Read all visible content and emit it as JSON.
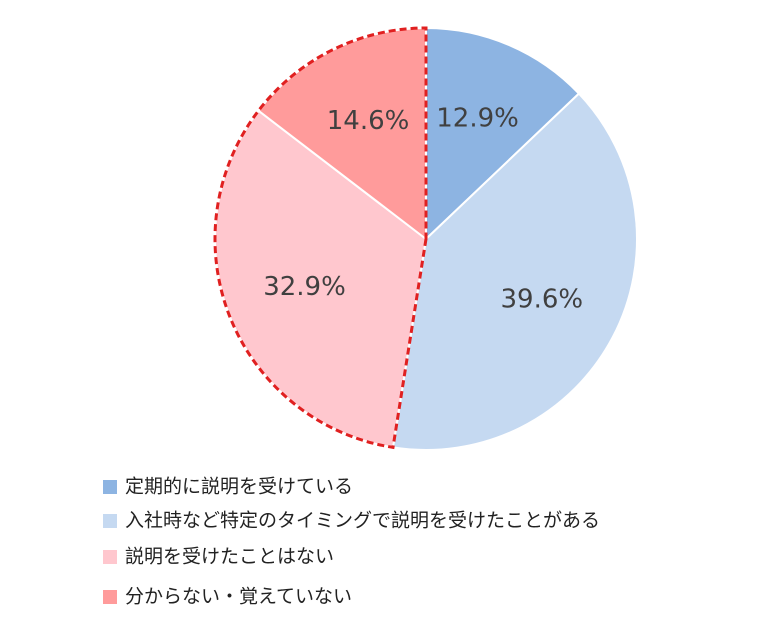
{
  "chart_data": {
    "type": "pie",
    "categories": [
      "定期的に説明を受けている",
      "入社時など特定のタイミングで説明を受けたことがある",
      "説明を受けたことはない",
      "分からない・覚えていない"
    ],
    "values": [
      12.9,
      39.6,
      32.9,
      14.6
    ],
    "value_labels": [
      "12.9%",
      "39.6%",
      "32.9%",
      "14.6%"
    ],
    "colors": [
      "#8db4e2",
      "#c5d9f1",
      "#ffc7ce",
      "#ff9b9b"
    ]
  }
}
